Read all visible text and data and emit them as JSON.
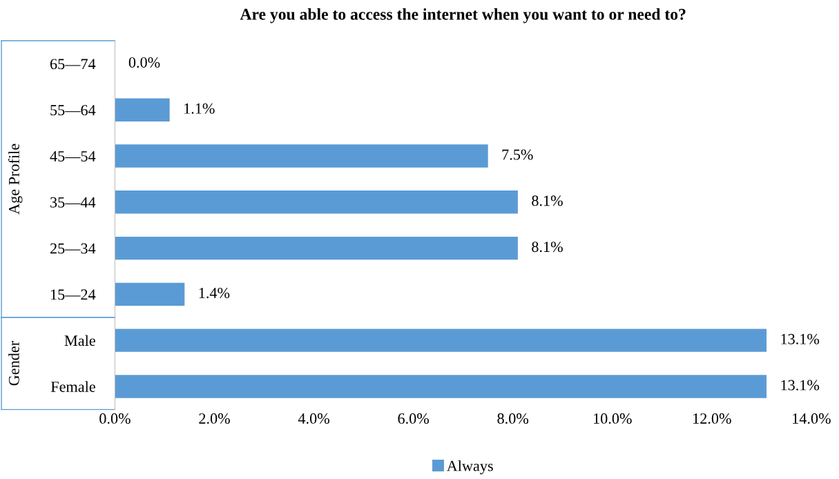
{
  "chart_data": {
    "type": "bar",
    "orientation": "horizontal",
    "title": "Are you able to access the internet when you want to or need to?",
    "categories": [
      "65—74",
      "55—64",
      "45—54",
      "35—44",
      "25—34",
      "15—24",
      "Male",
      "Female"
    ],
    "series": [
      {
        "name": "Always",
        "color": "#5b9bd5",
        "values": [
          0.0,
          1.1,
          7.5,
          8.1,
          8.1,
          1.4,
          13.1,
          13.1
        ],
        "value_labels": [
          "0.0%",
          "1.1%",
          "7.5%",
          "8.1%",
          "8.1%",
          "1.4%",
          "13.1%",
          "13.1%"
        ]
      }
    ],
    "xlim": [
      0,
      14
    ],
    "xticks": [
      {
        "value": 0,
        "label": "0.0%"
      },
      {
        "value": 2,
        "label": "2.0%"
      },
      {
        "value": 4,
        "label": "4.0%"
      },
      {
        "value": 6,
        "label": "6.0%"
      },
      {
        "value": 8,
        "label": "8.0%"
      },
      {
        "value": 10,
        "label": "10.0%"
      },
      {
        "value": 12,
        "label": "12.0%"
      },
      {
        "value": 14,
        "label": "14.0%"
      }
    ],
    "annotations": [
      "Age Profile",
      "Gender"
    ],
    "legend": "bottom",
    "grid": false
  }
}
